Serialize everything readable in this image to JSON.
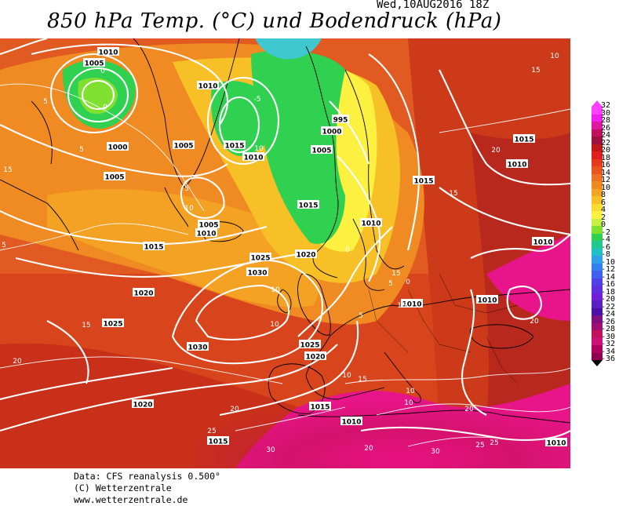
{
  "header": {
    "datetime": "Wed,10AUG2016 18Z",
    "title": "850 hPa Temp. (°C) und Bodendruck (hPa)"
  },
  "credits": {
    "line1": "Data: CFS reanalysis 0.500°",
    "line2": "(C) Wetterzentrale",
    "line3": "www.wetterzentrale.de"
  },
  "legend": {
    "labels": [
      "32",
      "30",
      "28",
      "26",
      "24",
      "22",
      "20",
      "18",
      "16",
      "14",
      "12",
      "10",
      "8",
      "6",
      "4",
      "2",
      "0",
      "-2",
      "-4",
      "-6",
      "-8",
      "-10",
      "-12",
      "-14",
      "-16",
      "-18",
      "-20",
      "-22",
      "-24",
      "-26",
      "-28",
      "-30",
      "-32",
      "-34",
      "-36"
    ],
    "colors": [
      "#ff40ff",
      "#f01ff0",
      "#e01aa0",
      "#c01060",
      "#a01040",
      "#c01818",
      "#e02020",
      "#e63a1e",
      "#ea5420",
      "#ee7024",
      "#f08a20",
      "#f4a222",
      "#f6c026",
      "#f8dc30",
      "#fcf040",
      "#c8f040",
      "#80e030",
      "#30d050",
      "#20c890",
      "#20c0c8",
      "#30a0e8",
      "#3080f0",
      "#4060f0",
      "#5040e8",
      "#6030e0",
      "#7020d8",
      "#5a20c0",
      "#4a10a8",
      "#801080",
      "#a01070",
      "#c01060",
      "#d0107a",
      "#b00060",
      "#900050",
      "#000000"
    ]
  },
  "isobars": [
    {
      "v": "1010",
      "k": "a"
    },
    {
      "v": "1005",
      "k": "b"
    },
    {
      "v": "1000",
      "k": "c"
    },
    {
      "v": "1005",
      "k": "d"
    },
    {
      "v": "1010",
      "k": "e"
    },
    {
      "v": "1005",
      "k": "f"
    },
    {
      "v": "1015",
      "k": "g"
    },
    {
      "v": "1010",
      "k": "h"
    },
    {
      "v": "995",
      "k": "i"
    },
    {
      "v": "1000",
      "k": "j"
    },
    {
      "v": "1005",
      "k": "k"
    },
    {
      "v": "1015",
      "k": "l"
    },
    {
      "v": "1010",
      "k": "m"
    },
    {
      "v": "1015",
      "k": "n"
    },
    {
      "v": "1005",
      "k": "o"
    },
    {
      "v": "1010",
      "k": "p"
    },
    {
      "v": "1015",
      "k": "q"
    },
    {
      "v": "1025",
      "k": "r"
    },
    {
      "v": "1020",
      "k": "s"
    },
    {
      "v": "1030",
      "k": "t"
    },
    {
      "v": "1020",
      "k": "u"
    },
    {
      "v": "1025",
      "k": "v"
    },
    {
      "v": "1030",
      "k": "w"
    },
    {
      "v": "1025",
      "k": "x"
    },
    {
      "v": "1020",
      "k": "y"
    },
    {
      "v": "1020",
      "k": "z"
    },
    {
      "v": "1015",
      "k": "aa"
    },
    {
      "v": "1010",
      "k": "ab"
    },
    {
      "v": "1015",
      "k": "ac"
    },
    {
      "v": "1010",
      "k": "ad"
    },
    {
      "v": "1010",
      "k": "ae"
    },
    {
      "v": "1015",
      "k": "af"
    },
    {
      "v": "1010",
      "k": "ag"
    },
    {
      "v": "1010",
      "k": "ah"
    },
    {
      "v": "1015",
      "k": "ai"
    },
    {
      "v": "1010",
      "k": "aj"
    },
    {
      "v": "1005",
      "k": "ak"
    }
  ],
  "temp_labels": [
    "10",
    "15",
    "15",
    "5",
    "0",
    "5",
    "10",
    "5",
    "15",
    "5",
    "0",
    "-5",
    "0",
    "10",
    "10",
    "5",
    "10",
    "15",
    "20",
    "15",
    "10",
    "20",
    "20",
    "25",
    "25",
    "30",
    "20",
    "30",
    "25",
    "20",
    "20",
    "15",
    "10",
    "10",
    "15",
    "5",
    "0"
  ]
}
